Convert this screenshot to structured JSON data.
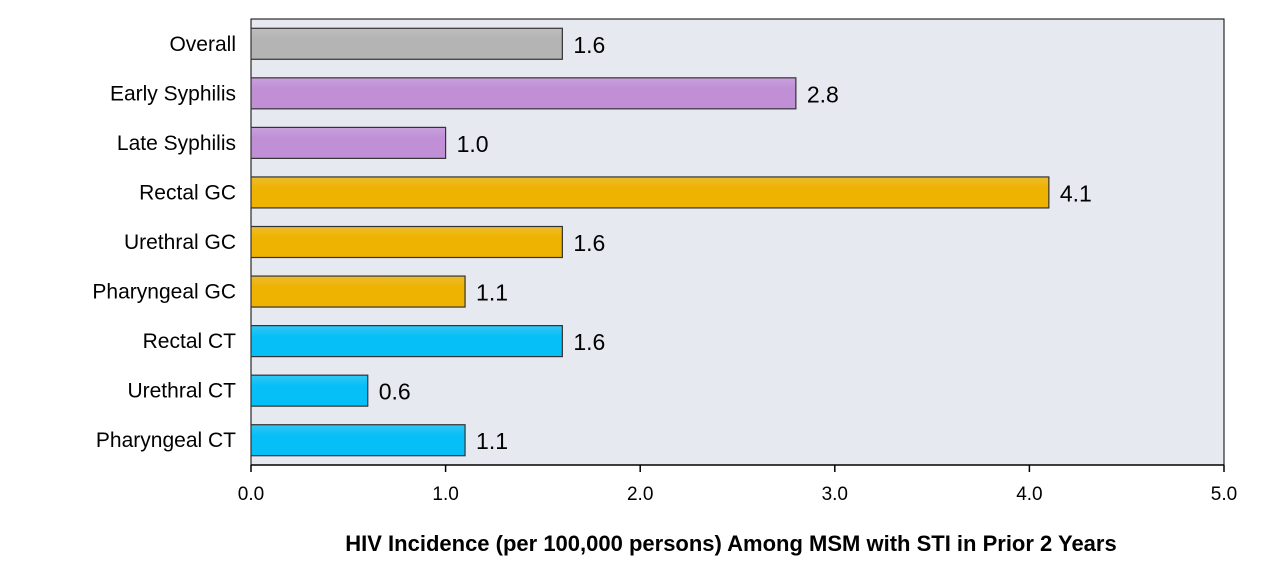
{
  "chart_data": {
    "type": "bar",
    "orientation": "horizontal",
    "categories": [
      "Overall",
      "Early Syphilis",
      "Late Syphilis",
      "Rectal GC",
      "Urethral GC",
      "Pharyngeal GC",
      "Rectal CT",
      "Urethral CT",
      "Pharyngeal CT"
    ],
    "values": [
      1.6,
      2.8,
      1.0,
      4.1,
      1.6,
      1.1,
      1.6,
      0.6,
      1.1
    ],
    "value_labels": [
      "1.6",
      "2.8",
      "1.0",
      "4.1",
      "1.6",
      "1.1",
      "1.6",
      "0.6",
      "1.1"
    ],
    "bar_colors": [
      "#b4b4b4",
      "#c08fd6",
      "#c08fd6",
      "#eeb200",
      "#eeb200",
      "#eeb200",
      "#06bff6",
      "#06bff6",
      "#06bff6"
    ],
    "xlim": [
      0,
      5
    ],
    "xticks": [
      "0.0",
      "1.0",
      "2.0",
      "3.0",
      "4.0",
      "5.0"
    ],
    "xtick_values": [
      0,
      1,
      2,
      3,
      4,
      5
    ],
    "title": "",
    "xlabel": "HIV Incidence (per 100,000 persons) Among MSM with STI in Prior 2 Years",
    "ylabel": "",
    "plot_background": "#e6e9f0",
    "grid": false,
    "legend": "none"
  }
}
